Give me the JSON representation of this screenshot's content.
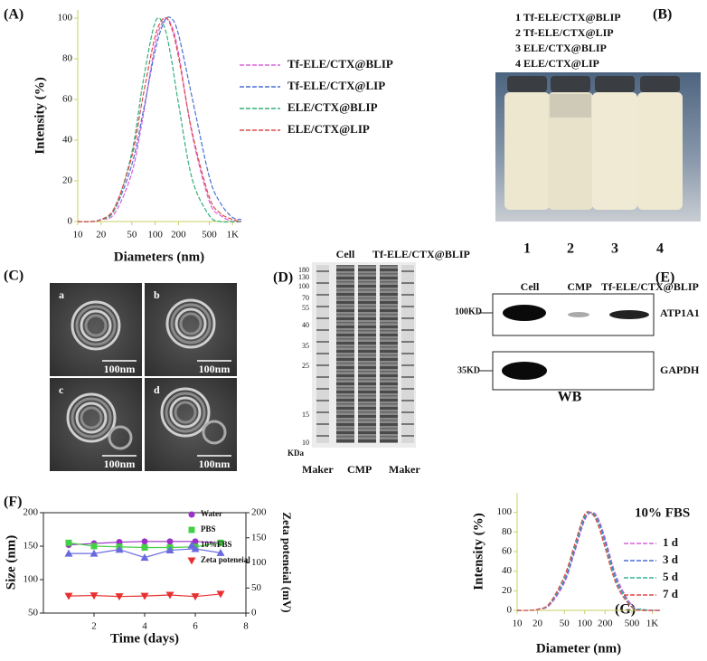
{
  "panel_labels": [
    "(A)",
    "(B)",
    "(C)",
    "(D)",
    "(E)",
    "(F)",
    "(G)"
  ],
  "chart_data": [
    {
      "type": "line",
      "x_label": "Diameters (nm)",
      "y_label": "Intensity (%)",
      "xscale": "log",
      "line_style": "dashed",
      "grid": false,
      "x": [
        10,
        15,
        20,
        30,
        50,
        70,
        100,
        130,
        160,
        200,
        300,
        500,
        700,
        1000,
        1300
      ],
      "xlim": [
        10,
        1300
      ],
      "xticks": [
        10,
        20,
        50,
        100,
        200,
        500,
        {
          "value": 1000,
          "label": "1K"
        }
      ],
      "ylim": [
        0,
        104
      ],
      "yticks": [
        0,
        20,
        40,
        60,
        80,
        100
      ],
      "series": [
        {
          "name": "Tf-ELE/CTX@BLIP",
          "color": "#d860d8",
          "values": [
            0,
            0,
            1,
            4,
            24,
            52,
            87,
            99,
            97,
            83,
            43,
            10,
            3,
            0,
            0
          ]
        },
        {
          "name": "Tf-ELE/CTX@LIP",
          "color": "#4a6fd8",
          "values": [
            0,
            0,
            1,
            6,
            28,
            54,
            84,
            98,
            100,
            92,
            61,
            22,
            9,
            2,
            1
          ]
        },
        {
          "name": "ELE/CTX@BLIP",
          "color": "#33b07a",
          "values": [
            0,
            0,
            1,
            6,
            34,
            69,
            98,
            96,
            81,
            58,
            21,
            3,
            0,
            0,
            0
          ]
        },
        {
          "name": "ELE/CTX@LIP",
          "color": "#e04848",
          "values": [
            0,
            0,
            1,
            7,
            32,
            62,
            91,
            100,
            96,
            81,
            44,
            12,
            4,
            1,
            0
          ]
        }
      ]
    },
    {
      "type": "line",
      "x_label": "Time (days)",
      "y_label": "Size (nm)",
      "y2_label": "Zeta poteneial (mV)",
      "grid": false,
      "x": [
        1,
        2,
        3,
        4,
        5,
        6,
        7
      ],
      "xlim": [
        0,
        8
      ],
      "xticks": [
        2,
        4,
        6,
        8
      ],
      "ylim": [
        50,
        200
      ],
      "yticks": [
        50,
        100,
        150,
        200
      ],
      "y2lim": [
        0,
        200
      ],
      "y2ticks": [
        0,
        50,
        100,
        150,
        200
      ],
      "series": [
        {
          "name": "Water",
          "color": "#9b30c8",
          "marker": "circle",
          "values": [
            152,
            154,
            156,
            157,
            157,
            157,
            155
          ]
        },
        {
          "name": "PBS",
          "color": "#44d044",
          "marker": "square",
          "values": [
            155,
            150,
            149,
            148,
            148,
            149,
            155
          ]
        },
        {
          "name": "10%FBS",
          "color": "#6a6ae0",
          "marker": "triangle-up",
          "values": [
            139,
            139,
            145,
            133,
            144,
            146,
            140
          ]
        },
        {
          "name": "Zeta poteneial",
          "color": "#e83030",
          "marker": "triangle-down",
          "axis": "y2",
          "values": [
            34,
            35,
            33,
            34,
            36,
            33,
            38
          ]
        }
      ]
    },
    {
      "type": "line",
      "x_label": "Diameter (nm)",
      "y_label": "Intensity (%)",
      "annotation": "10% FBS",
      "xscale": "log",
      "line_style": "dashed",
      "grid": false,
      "x": [
        10,
        15,
        20,
        30,
        50,
        70,
        100,
        130,
        160,
        200,
        300,
        500,
        700,
        1000,
        1300
      ],
      "xlim": [
        10,
        1300
      ],
      "xticks": [
        10,
        20,
        50,
        100,
        200,
        500,
        {
          "value": 1000,
          "label": "1K"
        }
      ],
      "ylim": [
        0,
        120
      ],
      "yticks": [
        0,
        20,
        40,
        60,
        80,
        100
      ],
      "series": [
        {
          "name": "1 d",
          "color": "#d860d8",
          "values": [
            0,
            0,
            1,
            5,
            28,
            58,
            92,
            100,
            93,
            74,
            33,
            5,
            1,
            0,
            0
          ]
        },
        {
          "name": "3 d",
          "color": "#4a6fd8",
          "values": [
            0,
            0,
            1,
            6,
            30,
            60,
            94,
            100,
            91,
            71,
            30,
            4,
            1,
            0,
            0
          ]
        },
        {
          "name": "5 d",
          "color": "#33b09a",
          "values": [
            0,
            0,
            1,
            6,
            32,
            63,
            96,
            99,
            89,
            68,
            28,
            4,
            1,
            0,
            0
          ]
        },
        {
          "name": "7 d",
          "color": "#e04848",
          "values": [
            0,
            0,
            1,
            7,
            35,
            66,
            98,
            98,
            86,
            64,
            25,
            3,
            0,
            0,
            0
          ]
        }
      ]
    }
  ],
  "vials": {
    "legend": [
      "1 Tf-ELE/CTX@BLIP",
      "2 Tf-ELE/CTX@LIP",
      "3 ELE/CTX@BLIP",
      "4 ELE/CTX@LIP"
    ],
    "numbers": [
      "1",
      "2",
      "3",
      "4"
    ]
  },
  "tem": {
    "images": [
      {
        "label": "a",
        "scale": "100nm"
      },
      {
        "label": "b",
        "scale": "100nm"
      },
      {
        "label": "c",
        "scale": "100nm"
      },
      {
        "label": "d",
        "scale": "100nm"
      }
    ]
  },
  "gel": {
    "lanes_top": [
      "Cell",
      "Tf-ELE/CTX@BLIP"
    ],
    "markers": [
      "180",
      "130",
      "100",
      "70",
      "55",
      "40",
      "35",
      "25",
      "15",
      "10"
    ],
    "unit": "KDa",
    "lanes_bottom": [
      "Maker",
      "CMP",
      "Maker"
    ]
  },
  "wb": {
    "lanes": [
      "Cell",
      "CMP",
      "Tf-ELE/CTX@BLIP"
    ],
    "sizes": [
      "100KD",
      "35KD"
    ],
    "proteins": [
      "ATP1A1",
      "GAPDH"
    ],
    "label": "WB"
  }
}
